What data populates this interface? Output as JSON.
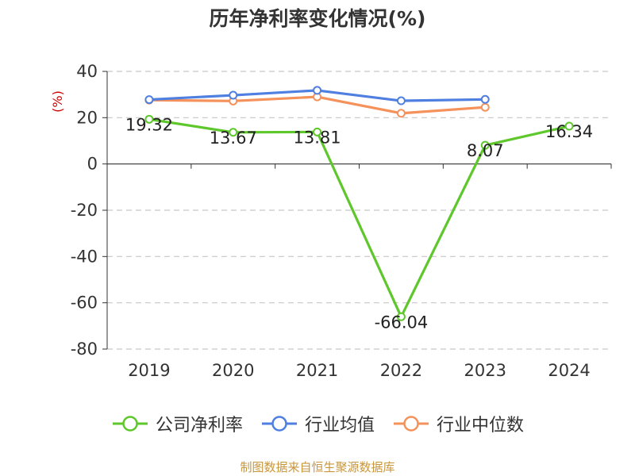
{
  "chart_data": {
    "type": "line",
    "title": "历年净利率变化情况(%)",
    "ylabel": "(%)",
    "categories": [
      "2019",
      "2020",
      "2021",
      "2022",
      "2023",
      "2024"
    ],
    "ylim": [
      -80,
      40
    ],
    "yticks": [
      40,
      20,
      0,
      -20,
      -40,
      -60,
      -80
    ],
    "grid": true,
    "legend_position": "bottom",
    "series": [
      {
        "name": "公司净利率",
        "color": "#5ec72b",
        "values": [
          19.32,
          13.67,
          13.81,
          -66.04,
          8.07,
          16.34
        ],
        "labels": [
          "19.32",
          "13.67",
          "13.81",
          "-66.04",
          "8.07",
          "16.34"
        ]
      },
      {
        "name": "行业均值",
        "color": "#4f7fe0",
        "values": [
          27.8,
          29.7,
          31.8,
          27.3,
          27.9,
          null
        ]
      },
      {
        "name": "行业中位数",
        "color": "#f5915a",
        "values": [
          27.6,
          27.2,
          29.0,
          21.9,
          24.5,
          null
        ]
      }
    ]
  },
  "footer": {
    "source": "制图数据来自恒生聚源数据库"
  }
}
